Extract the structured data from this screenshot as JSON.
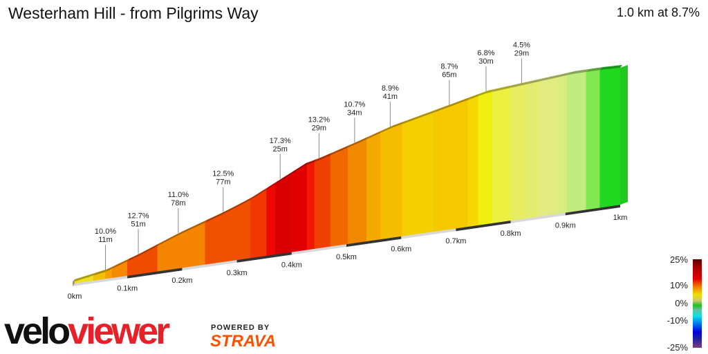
{
  "header": {
    "title": "Westerham Hill - from Pilgrims Way",
    "summary": "1.0 km at 8.7%"
  },
  "chart_data": {
    "type": "area",
    "title": "Westerham Hill - from Pilgrims Way",
    "xlabel": "",
    "ylabel": "",
    "xlim": [
      0,
      1
    ],
    "x_ticks": [
      "0km",
      "0.1km",
      "0.2km",
      "0.3km",
      "0.4km",
      "0.5km",
      "0.6km",
      "0.7km",
      "0.8km",
      "0.9km",
      "1km"
    ],
    "annotations": [
      {
        "km": 0.06,
        "gradient": "10.0%",
        "length": "11m"
      },
      {
        "km": 0.12,
        "gradient": "12.7%",
        "length": "51m"
      },
      {
        "km": 0.193,
        "gradient": "11.0%",
        "length": "78m"
      },
      {
        "km": 0.275,
        "gradient": "12.5%",
        "length": "77m"
      },
      {
        "km": 0.379,
        "gradient": "17.3%",
        "length": "25m"
      },
      {
        "km": 0.45,
        "gradient": "13.2%",
        "length": "29m"
      },
      {
        "km": 0.515,
        "gradient": "10.7%",
        "length": "34m"
      },
      {
        "km": 0.58,
        "gradient": "8.9%",
        "length": "41m"
      },
      {
        "km": 0.688,
        "gradient": "8.7%",
        "length": "65m"
      },
      {
        "km": 0.755,
        "gradient": "6.8%",
        "length": "30m"
      },
      {
        "km": 0.82,
        "gradient": "4.5%",
        "length": "29m"
      }
    ],
    "segments": [
      {
        "from": 0,
        "to": 0.038,
        "color": "#f0e020"
      },
      {
        "from": 0.038,
        "to": 0.06,
        "color": "#f5c000"
      },
      {
        "from": 0.06,
        "to": 0.072,
        "color": "#f5a000"
      },
      {
        "from": 0.072,
        "to": 0.1,
        "color": "#f58a00"
      },
      {
        "from": 0.1,
        "to": 0.155,
        "color": "#f04c00"
      },
      {
        "from": 0.155,
        "to": 0.242,
        "color": "#f58400"
      },
      {
        "from": 0.242,
        "to": 0.325,
        "color": "#f05000"
      },
      {
        "from": 0.325,
        "to": 0.354,
        "color": "#f03800"
      },
      {
        "from": 0.354,
        "to": 0.37,
        "color": "#f00800"
      },
      {
        "from": 0.37,
        "to": 0.398,
        "color": "#d80000"
      },
      {
        "from": 0.398,
        "to": 0.428,
        "color": "#e00000"
      },
      {
        "from": 0.428,
        "to": 0.442,
        "color": "#f01800"
      },
      {
        "from": 0.442,
        "to": 0.471,
        "color": "#f04000"
      },
      {
        "from": 0.471,
        "to": 0.503,
        "color": "#f06800"
      },
      {
        "from": 0.503,
        "to": 0.537,
        "color": "#f08800"
      },
      {
        "from": 0.537,
        "to": 0.562,
        "color": "#f5a800"
      },
      {
        "from": 0.562,
        "to": 0.602,
        "color": "#f5bc00"
      },
      {
        "from": 0.602,
        "to": 0.659,
        "color": "#f5d000"
      },
      {
        "from": 0.659,
        "to": 0.722,
        "color": "#f5c800"
      },
      {
        "from": 0.722,
        "to": 0.741,
        "color": "#f5d800"
      },
      {
        "from": 0.741,
        "to": 0.766,
        "color": "#f0f010"
      },
      {
        "from": 0.766,
        "to": 0.8,
        "color": "#eef040"
      },
      {
        "from": 0.8,
        "to": 0.83,
        "color": "#e8ec60"
      },
      {
        "from": 0.83,
        "to": 0.852,
        "color": "#e4ec70"
      },
      {
        "from": 0.852,
        "to": 0.888,
        "color": "#e0ec80"
      },
      {
        "from": 0.888,
        "to": 0.903,
        "color": "#d8ec80"
      },
      {
        "from": 0.903,
        "to": 0.938,
        "color": "#c0ec80"
      },
      {
        "from": 0.938,
        "to": 0.963,
        "color": "#80e850"
      },
      {
        "from": 0.963,
        "to": 1.0,
        "color": "#20d820"
      }
    ],
    "legend": {
      "placement": "bottom-right",
      "labels": [
        "25%",
        "10%",
        "0%",
        "-10%",
        "-25%"
      ]
    }
  },
  "branding": {
    "logo_a": "velo",
    "logo_b": "viewer",
    "powered_by": "POWERED BY",
    "strava": "STRAVA"
  }
}
